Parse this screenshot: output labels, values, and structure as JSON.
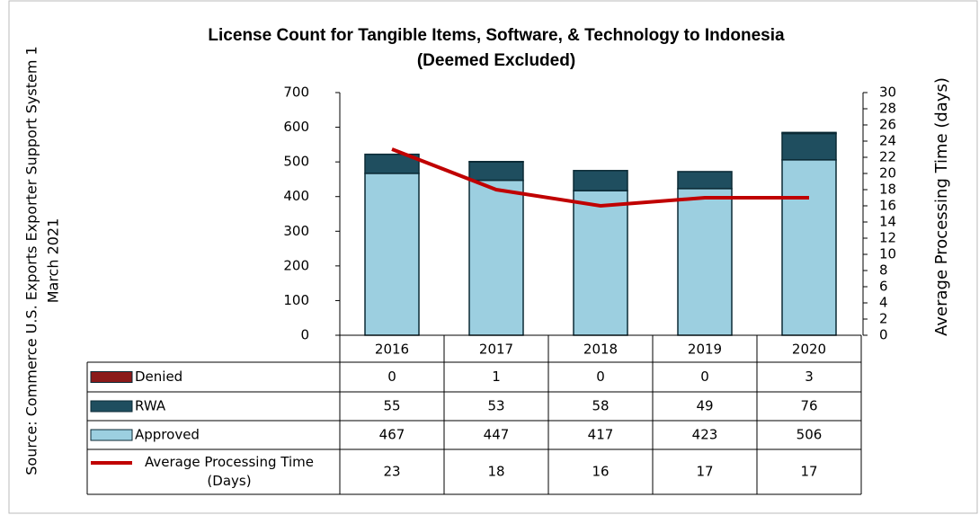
{
  "chart_data": {
    "type": "bar",
    "title": [
      "License Count for Tangible Items, Software, & Technology to Indonesia",
      "(Deemed Excluded)"
    ],
    "source": [
      "Source: Commerce U.S. Exports Exporter Support System 1",
      "March 2021"
    ],
    "y2label": "Average Processing Time (days)",
    "categories": [
      "2016",
      "2017",
      "2018",
      "2019",
      "2020"
    ],
    "series": [
      {
        "name": "Denied",
        "color": "#8b1a1a",
        "values": [
          0,
          1,
          0,
          0,
          3
        ]
      },
      {
        "name": "RWA",
        "color": "#1f4e5f",
        "values": [
          55,
          53,
          58,
          49,
          76
        ]
      },
      {
        "name": "Approved",
        "color": "#9ccfe0",
        "values": [
          467,
          447,
          417,
          423,
          506
        ]
      },
      {
        "name": "Average Processing Time (Days)",
        "color": "#c00000",
        "axis": "y2",
        "values": [
          23,
          18,
          16,
          17,
          17
        ]
      }
    ],
    "ylim": [
      0,
      700
    ],
    "yticks": [
      0,
      100,
      200,
      300,
      400,
      500,
      600,
      700
    ],
    "y2lim": [
      0,
      30
    ],
    "y2ticks": [
      0,
      2,
      4,
      6,
      8,
      10,
      12,
      14,
      16,
      18,
      20,
      22,
      24,
      26,
      28,
      30
    ]
  }
}
